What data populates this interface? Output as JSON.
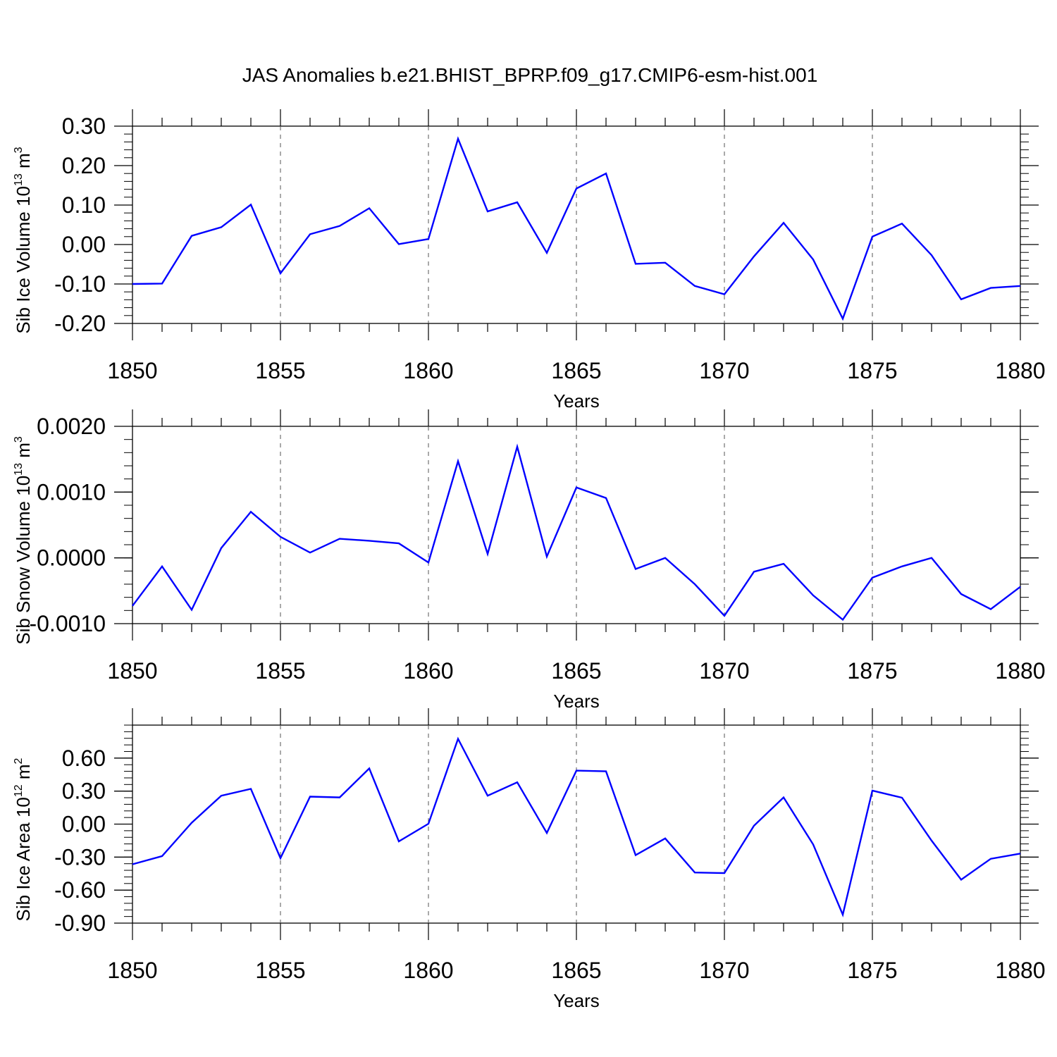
{
  "title": "JAS Anomalies b.e21.BHIST_BPRP.f09_g17.CMIP6-esm-hist.001",
  "line_color": "#0000ff",
  "chart_data": [
    {
      "type": "line",
      "ylabel": "Sib Ice Volume 10",
      "ylabel_exp": "13",
      "ylabel_unit": " m",
      "ylabel_unit_exp": "3",
      "xlabel": "Years",
      "xlim": [
        1850,
        1880
      ],
      "ylim": [
        -0.2,
        0.3
      ],
      "xticks": [
        "1850",
        "1855",
        "1860",
        "1865",
        "1870",
        "1875",
        "1880"
      ],
      "yticks": [
        {
          "v": 0.3,
          "label": "0.30"
        },
        {
          "v": 0.2,
          "label": "0.20"
        },
        {
          "v": 0.1,
          "label": "0.10"
        },
        {
          "v": 0.0,
          "label": "0.00"
        },
        {
          "v": -0.1,
          "label": "-0.10"
        },
        {
          "v": -0.2,
          "label": "-0.20"
        }
      ],
      "ymin_minor": 0.02,
      "x": [
        1850,
        1851,
        1852,
        1853,
        1854,
        1855,
        1856,
        1857,
        1858,
        1859,
        1860,
        1861,
        1862,
        1863,
        1864,
        1865,
        1866,
        1867,
        1868,
        1869,
        1870,
        1871,
        1872,
        1873,
        1874,
        1875,
        1876,
        1877,
        1878,
        1879,
        1880
      ],
      "values": [
        -0.1,
        -0.099,
        0.022,
        0.044,
        0.101,
        -0.073,
        0.026,
        0.047,
        0.092,
        0.001,
        0.014,
        0.268,
        0.084,
        0.107,
        -0.021,
        0.142,
        0.18,
        -0.049,
        -0.046,
        -0.105,
        -0.126,
        -0.03,
        0.055,
        -0.038,
        -0.188,
        0.02,
        0.053,
        -0.027,
        -0.139,
        -0.11,
        -0.105
      ]
    },
    {
      "type": "line",
      "ylabel": "Sib Snow Volume 10",
      "ylabel_exp": "13",
      "ylabel_unit": " m",
      "ylabel_unit_exp": "3",
      "xlabel": "Years",
      "xlim": [
        1850,
        1880
      ],
      "ylim": [
        -0.001,
        0.002
      ],
      "xticks": [
        "1850",
        "1855",
        "1860",
        "1865",
        "1870",
        "1875",
        "1880"
      ],
      "yticks": [
        {
          "v": 0.002,
          "label": "0.0020"
        },
        {
          "v": 0.001,
          "label": "0.0010"
        },
        {
          "v": 0.0,
          "label": "0.0000"
        },
        {
          "v": -0.001,
          "label": "-0.0010"
        }
      ],
      "ymin_minor": 0.0002,
      "x": [
        1850,
        1851,
        1852,
        1853,
        1854,
        1855,
        1856,
        1857,
        1858,
        1859,
        1860,
        1861,
        1862,
        1863,
        1864,
        1865,
        1866,
        1867,
        1868,
        1869,
        1870,
        1871,
        1872,
        1873,
        1874,
        1875,
        1876,
        1877,
        1878,
        1879,
        1880
      ],
      "values": [
        -0.00073,
        -0.00013,
        -0.00079,
        0.00015,
        0.0007,
        0.00032,
        8e-05,
        0.00029,
        0.00026,
        0.00022,
        -7e-05,
        0.00147,
        6e-05,
        0.00169,
        2e-05,
        0.00107,
        0.00091,
        -0.00017,
        0.0,
        -0.0004,
        -0.00088,
        -0.00021,
        -9e-05,
        -0.00057,
        -0.00094,
        -0.0003,
        -0.00013,
        0.0,
        -0.00055,
        -0.00078,
        -0.00044
      ]
    },
    {
      "type": "line",
      "ylabel": "Sib Ice Area 10",
      "ylabel_exp": "12",
      "ylabel_unit": " m",
      "ylabel_unit_exp": "2",
      "xlabel": "Years",
      "xlim": [
        1850,
        1880
      ],
      "ylim": [
        -0.9,
        0.9
      ],
      "xticks": [
        "1850",
        "1855",
        "1860",
        "1865",
        "1870",
        "1875",
        "1880"
      ],
      "yticks": [
        {
          "v": 0.6,
          "label": "0.60"
        },
        {
          "v": 0.3,
          "label": "0.30"
        },
        {
          "v": 0.0,
          "label": "0.00"
        },
        {
          "v": -0.3,
          "label": "-0.30"
        },
        {
          "v": -0.6,
          "label": "-0.60"
        },
        {
          "v": -0.9,
          "label": "-0.90"
        }
      ],
      "ymin_minor": 0.06,
      "x": [
        1850,
        1851,
        1852,
        1853,
        1854,
        1855,
        1856,
        1857,
        1858,
        1859,
        1860,
        1861,
        1862,
        1863,
        1864,
        1865,
        1866,
        1867,
        1868,
        1869,
        1870,
        1871,
        1872,
        1873,
        1874,
        1875,
        1876,
        1877,
        1878,
        1879,
        1880
      ],
      "values": [
        -0.365,
        -0.291,
        0.012,
        0.258,
        0.32,
        -0.31,
        0.25,
        0.243,
        0.506,
        -0.157,
        0.003,
        0.775,
        0.258,
        0.38,
        -0.08,
        0.486,
        0.48,
        -0.282,
        -0.13,
        -0.44,
        -0.445,
        -0.015,
        0.243,
        -0.185,
        -0.823,
        0.305,
        0.24,
        -0.15,
        -0.505,
        -0.315,
        -0.268
      ]
    }
  ]
}
